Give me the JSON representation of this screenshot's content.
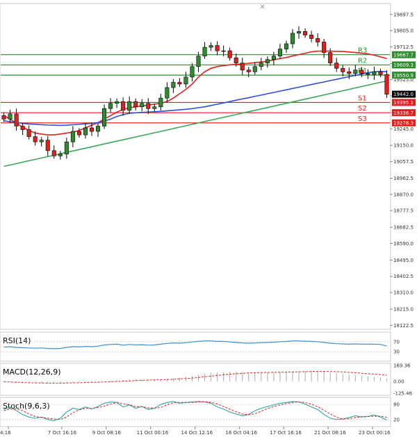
{
  "chart_data": {
    "type": "candlestick",
    "title": "",
    "xlabel": "",
    "ylabel": "",
    "ylim": [
      18100,
      19960
    ],
    "grid": false,
    "price_ticks": [
      "19897.5",
      "19805.0",
      "19712.5",
      "19617.5",
      "19525.0",
      "19432.5",
      "19337.5",
      "19245.0",
      "19150.0",
      "19057.5",
      "18962.5",
      "18870.0",
      "18777.5",
      "18682.5",
      "18590.0",
      "18495.0",
      "18402.5",
      "18310.0",
      "18215.0",
      "18122.5"
    ],
    "x_tick_labels": [
      "4:16",
      "7 Oct 16:16",
      "9 Oct 08:16",
      "11 Oct 00:16",
      "14 Oct 12:16",
      "16 Oct 04:16",
      "17 Oct 16:16",
      "21 Oct 08:16",
      "23 Oct 00:16"
    ],
    "current_price": {
      "label": "19442.0",
      "value": 19442
    },
    "levels": [
      {
        "name": "R3",
        "value": 19667.7,
        "label": "19667.7",
        "color": "#2e8b2e"
      },
      {
        "name": "R2",
        "value": 19609.3,
        "label": "19609.3",
        "color": "#2e8b2e"
      },
      {
        "name": "R1",
        "value": 19550.9,
        "label": "19550.9",
        "color": "#2e8b2e"
      },
      {
        "name": "S1",
        "value": 19395.1,
        "label": "19395.1",
        "color": "#e0201c"
      },
      {
        "name": "S2",
        "value": 19336.7,
        "label": "19336.7",
        "color": "#e0201c"
      },
      {
        "name": "S3",
        "value": 19278.3,
        "label": "19278.3",
        "color": "#e0201c"
      }
    ],
    "close": [
      19300,
      19330,
      19260,
      19240,
      19200,
      19170,
      19180,
      19120,
      19090,
      19100,
      19170,
      19230,
      19210,
      19250,
      19230,
      19260,
      19360,
      19390,
      19400,
      19350,
      19400,
      19370,
      19390,
      19360,
      19370,
      19420,
      19480,
      19510,
      19500,
      19540,
      19600,
      19660,
      19710,
      19720,
      19690,
      19690,
      19650,
      19620,
      19580,
      19570,
      19600,
      19620,
      19640,
      19660,
      19700,
      19730,
      19790,
      19800,
      19780,
      19760,
      19740,
      19680,
      19620,
      19590,
      19570,
      19560,
      19580,
      19560,
      19555,
      19570,
      19555,
      19442
    ],
    "moving_averages": [
      {
        "name": "MA-fast",
        "color": "#e0201c",
        "values": [
          19320,
          19300,
          19275,
          19255,
          19235,
          19220,
          19215,
          19210,
          19210,
          19215,
          19220,
          19225,
          19235,
          19250,
          19265,
          19280,
          19300,
          19320,
          19340,
          19355,
          19365,
          19370,
          19375,
          19380,
          19385,
          19390,
          19400,
          19420,
          19445,
          19470,
          19500,
          19540,
          19570,
          19590,
          19600,
          19605,
          19610,
          19612,
          19615,
          19618,
          19622,
          19626,
          19630,
          19638,
          19645,
          19652,
          19660,
          19668,
          19676,
          19684,
          19688,
          19688,
          19688,
          19687,
          19686,
          19683,
          19680,
          19676,
          19672,
          19665,
          19655,
          19645
        ]
      },
      {
        "name": "MA-mid",
        "color": "#2b4fd8",
        "values": [
          19290,
          19285,
          19280,
          19275,
          19272,
          19270,
          19268,
          19266,
          19265,
          19264,
          19265,
          19268,
          19270,
          19273,
          19276,
          19280,
          19288,
          19300,
          19315,
          19325,
          19333,
          19336,
          19338,
          19340,
          19342,
          19344,
          19347,
          19350,
          19353,
          19356,
          19360,
          19365,
          19370,
          19378,
          19385,
          19392,
          19400,
          19408,
          19415,
          19422,
          19430,
          19437,
          19445,
          19452,
          19460,
          19467,
          19475,
          19482,
          19490,
          19497,
          19505,
          19512,
          19520,
          19527,
          19535,
          19542,
          19550,
          19557,
          19565,
          19570,
          19572,
          19570
        ]
      },
      {
        "name": "MA-slow",
        "color": "#3aa65a",
        "values": [
          19030,
          19038,
          19046,
          19054,
          19062,
          19070,
          19078,
          19086,
          19094,
          19102,
          19110,
          19118,
          19126,
          19134,
          19142,
          19150,
          19158,
          19166,
          19174,
          19182,
          19190,
          19198,
          19206,
          19214,
          19222,
          19230,
          19238,
          19246,
          19254,
          19262,
          19270,
          19278,
          19286,
          19294,
          19302,
          19310,
          19318,
          19326,
          19334,
          19342,
          19350,
          19358,
          19366,
          19374,
          19382,
          19390,
          19398,
          19406,
          19414,
          19422,
          19430,
          19438,
          19446,
          19454,
          19462,
          19470,
          19478,
          19486,
          19494,
          19502,
          19510,
          19518
        ]
      }
    ],
    "indicators": [
      {
        "name": "RSI",
        "label": "RSI(14)",
        "ticks": [
          "70",
          "30"
        ],
        "ylim": [
          0,
          100
        ],
        "levels": [
          70,
          30
        ],
        "values": [
          48,
          50,
          47,
          46,
          45,
          44,
          45,
          43,
          42,
          43,
          47,
          50,
          49,
          51,
          50,
          52,
          57,
          59,
          60,
          56,
          59,
          57,
          58,
          56,
          57,
          60,
          63,
          65,
          64,
          66,
          69,
          71,
          73,
          73,
          71,
          71,
          69,
          67,
          65,
          64,
          65,
          66,
          67,
          68,
          70,
          71,
          73,
          73,
          72,
          71,
          70,
          67,
          64,
          62,
          61,
          60,
          61,
          60,
          60,
          60,
          59,
          53
        ]
      },
      {
        "name": "MACD",
        "label": "MACD(12,26,9)",
        "ticks": [
          "169.36",
          "0.00",
          "-125.46"
        ],
        "ylim": [
          -125.46,
          169.36
        ],
        "histogram": [
          -5,
          -8,
          -12,
          -15,
          -18,
          -20,
          -20,
          -22,
          -24,
          -22,
          -18,
          -14,
          -12,
          -8,
          -6,
          -3,
          2,
          8,
          14,
          16,
          18,
          19,
          20,
          20,
          21,
          23,
          28,
          34,
          40,
          48,
          58,
          70,
          82,
          92,
          98,
          102,
          104,
          104,
          102,
          100,
          98,
          97,
          97,
          98,
          100,
          102,
          106,
          110,
          112,
          112,
          110,
          104,
          96,
          88,
          80,
          72,
          66,
          60,
          54,
          48,
          42,
          30
        ],
        "signal": [
          -4,
          -6,
          -9,
          -12,
          -14,
          -16,
          -17,
          -18,
          -19,
          -19,
          -18,
          -16,
          -14,
          -12,
          -10,
          -8,
          -6,
          -3,
          0,
          3,
          6,
          9,
          12,
          14,
          16,
          18,
          20,
          23,
          27,
          31,
          36,
          42,
          49,
          56,
          63,
          70,
          76,
          82,
          86,
          89,
          92,
          94,
          95,
          96,
          97,
          98,
          99,
          101,
          103,
          105,
          106,
          106,
          105,
          103,
          100,
          96,
          92,
          87,
          82,
          77,
          72,
          66
        ]
      },
      {
        "name": "Stoch",
        "label": "Stoch(9,6,3)",
        "ticks": [
          "80",
          "20"
        ],
        "ylim": [
          0,
          100
        ],
        "levels": [
          80,
          20
        ],
        "k": [
          60,
          70,
          55,
          40,
          30,
          25,
          30,
          20,
          15,
          25,
          50,
          65,
          60,
          70,
          62,
          72,
          85,
          90,
          88,
          70,
          78,
          65,
          72,
          60,
          65,
          80,
          88,
          92,
          85,
          88,
          90,
          92,
          90,
          85,
          70,
          62,
          50,
          42,
          35,
          40,
          55,
          65,
          72,
          78,
          85,
          88,
          92,
          90,
          82,
          70,
          60,
          40,
          25,
          20,
          22,
          28,
          35,
          30,
          32,
          38,
          30,
          18
        ],
        "d": [
          55,
          62,
          62,
          55,
          42,
          32,
          28,
          25,
          22,
          20,
          30,
          47,
          58,
          65,
          64,
          68,
          73,
          82,
          88,
          83,
          79,
          71,
          72,
          66,
          66,
          68,
          78,
          87,
          88,
          88,
          88,
          90,
          91,
          89,
          82,
          72,
          61,
          51,
          42,
          39,
          43,
          53,
          64,
          72,
          78,
          84,
          88,
          90,
          88,
          81,
          71,
          57,
          42,
          29,
          22,
          23,
          28,
          31,
          32,
          33,
          33,
          29
        ]
      }
    ]
  }
}
